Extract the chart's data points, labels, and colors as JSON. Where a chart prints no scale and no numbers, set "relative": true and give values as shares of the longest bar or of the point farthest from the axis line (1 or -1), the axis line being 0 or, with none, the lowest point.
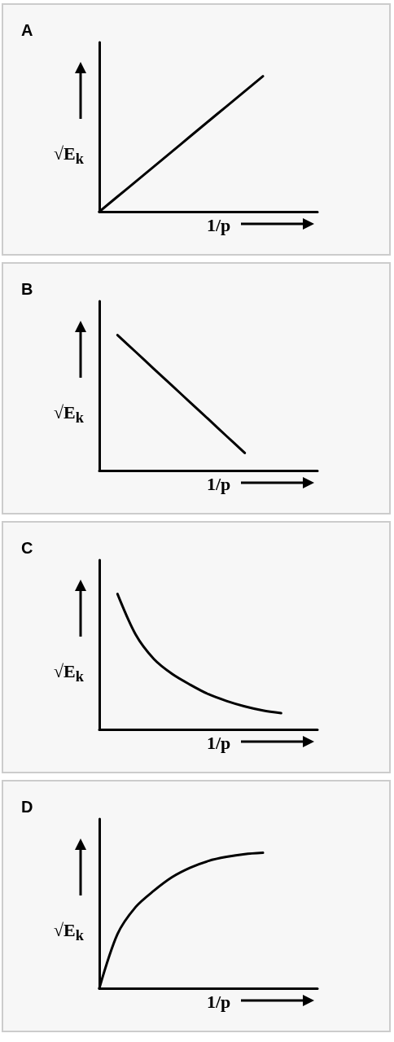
{
  "chart_data": [
    {
      "type": "line",
      "title": "A",
      "xlabel": "1/p",
      "ylabel": "√E$_{k}$",
      "relative": true,
      "marker": "none",
      "categories": [
        null,
        null,
        null,
        null,
        null,
        null,
        null,
        null,
        null,
        null,
        null,
        null,
        null
      ],
      "series": [
        {
          "color": "#000000",
          "values": [
            0,
            0.111,
            0.222,
            0.333,
            0.444,
            0.556,
            0.667,
            0.778,
            0.889,
            1,
            null,
            null,
            null
          ]
        }
      ]
    },
    {
      "type": "line",
      "title": "B",
      "xlabel": "1/p",
      "ylabel": "√E$_{k}$",
      "relative": true,
      "marker": "none",
      "categories": [
        null,
        null,
        null,
        null,
        null,
        null,
        null,
        null,
        null,
        null,
        null,
        null,
        null
      ],
      "series": [
        {
          "color": "#000000",
          "values": [
            null,
            1,
            0.876,
            0.751,
            0.627,
            0.503,
            0.379,
            0.254,
            0.13,
            null,
            null,
            null,
            null
          ]
        }
      ]
    },
    {
      "type": "line",
      "title": "C",
      "xlabel": "1/p",
      "ylabel": "√E$_{k}$",
      "relative": true,
      "marker": "none",
      "categories": [
        null,
        null,
        null,
        null,
        null,
        null,
        null,
        null,
        null,
        null,
        null,
        null,
        null
      ],
      "series": [
        {
          "color": "#000000",
          "values": [
            null,
            1,
            0.7,
            0.52,
            0.41,
            0.33,
            0.26,
            0.21,
            0.17,
            0.14,
            0.12,
            null,
            null
          ]
        }
      ]
    },
    {
      "type": "line",
      "title": "D",
      "xlabel": "1/p",
      "ylabel": "√E$_{k}$",
      "relative": true,
      "marker": "none",
      "categories": [
        null,
        null,
        null,
        null,
        null,
        null,
        null,
        null,
        null,
        null,
        null,
        null,
        null
      ],
      "series": [
        {
          "color": "#000000",
          "values": [
            0,
            0.4,
            0.6,
            0.72,
            0.82,
            0.89,
            0.94,
            0.97,
            0.99,
            1,
            null,
            null,
            null
          ]
        }
      ]
    }
  ]
}
